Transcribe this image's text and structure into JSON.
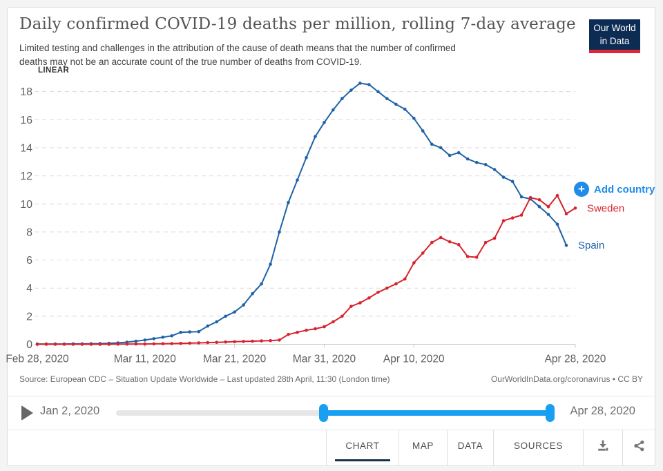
{
  "header": {
    "title": "Daily confirmed COVID-19 deaths per million, rolling 7-day average",
    "subtitle_line1": "Limited testing and challenges in the attribution of the cause of death means that the number of confirmed",
    "subtitle_line2": "deaths may not be an accurate count of the true number of deaths from COVID-19.",
    "logo_line1": "Our World",
    "logo_line2": "in Data"
  },
  "chart": {
    "scale_label": "LINEAR",
    "add_country_label": "Add country"
  },
  "chart_data": {
    "type": "line",
    "title": "Daily confirmed COVID-19 deaths per million, rolling 7-day average",
    "grid": true,
    "ylim": [
      0,
      18.6
    ],
    "y_ticks": [
      0,
      2,
      4,
      6,
      8,
      10,
      12,
      14,
      16,
      18
    ],
    "x_ticks": [
      {
        "label": "Feb 28, 2020",
        "day": 0
      },
      {
        "label": "Mar 11, 2020",
        "day": 12
      },
      {
        "label": "Mar 21, 2020",
        "day": 22
      },
      {
        "label": "Mar 31, 2020",
        "day": 32
      },
      {
        "label": "Apr 10, 2020",
        "day": 42
      },
      {
        "label": "Apr 28, 2020",
        "day": 60
      }
    ],
    "x_range": [
      "Feb 28, 2020",
      "Apr 28, 2020"
    ],
    "legend_position": "right-of-line-endpoints",
    "series": [
      {
        "name": "Spain",
        "color": "#1f62a8",
        "start_day": 0,
        "end_date": "Apr 27, 2020",
        "values": [
          0.02,
          0.02,
          0.02,
          0.02,
          0.03,
          0.03,
          0.04,
          0.05,
          0.07,
          0.1,
          0.15,
          0.22,
          0.3,
          0.4,
          0.5,
          0.6,
          0.85,
          0.88,
          0.9,
          1.3,
          1.6,
          2.0,
          2.3,
          2.8,
          3.6,
          4.3,
          5.7,
          8.0,
          10.1,
          11.7,
          13.3,
          14.8,
          15.8,
          16.7,
          17.5,
          18.1,
          18.6,
          18.5,
          18.0,
          17.5,
          17.1,
          16.75,
          16.1,
          15.2,
          14.25,
          14.0,
          13.45,
          13.65,
          13.2,
          12.95,
          12.8,
          12.45,
          11.9,
          11.6,
          10.5,
          10.35,
          9.8,
          9.25,
          8.55,
          7.05
        ]
      },
      {
        "name": "Sweden",
        "color": "#d7232d",
        "start_day": 0,
        "end_date": "Apr 28, 2020",
        "values": [
          0.0,
          0.0,
          0.0,
          0.0,
          0.0,
          0.0,
          0.0,
          0.0,
          0.0,
          0.01,
          0.01,
          0.02,
          0.02,
          0.03,
          0.04,
          0.05,
          0.06,
          0.08,
          0.1,
          0.12,
          0.14,
          0.16,
          0.18,
          0.2,
          0.22,
          0.24,
          0.26,
          0.3,
          0.7,
          0.85,
          1.0,
          1.1,
          1.25,
          1.6,
          2.0,
          2.7,
          2.95,
          3.3,
          3.7,
          4.0,
          4.3,
          4.65,
          5.8,
          6.5,
          7.25,
          7.6,
          7.3,
          7.1,
          6.25,
          6.2,
          7.25,
          7.55,
          8.8,
          9.0,
          9.2,
          10.45,
          10.3,
          9.8,
          10.6,
          9.3,
          9.7
        ]
      }
    ]
  },
  "footer": {
    "source": "Source: European CDC – Situation Update Worldwide – Last updated 28th April, 11:30 (London time)",
    "attribution": "OurWorldInData.org/coronavirus • CC BY"
  },
  "timeline": {
    "start_label": "Jan 2, 2020",
    "end_label": "Apr 28, 2020",
    "selected_range_percent": [
      47.5,
      100
    ]
  },
  "tabs": [
    {
      "label": "CHART",
      "active": true
    },
    {
      "label": "MAP",
      "active": false
    },
    {
      "label": "DATA",
      "active": false
    },
    {
      "label": "SOURCES",
      "active": false
    }
  ],
  "colors": {
    "spain_line": "#1f62a8",
    "sweden_line": "#d7232d",
    "slider_accent": "#189ff2",
    "add_country_blue": "#1e8ce8",
    "logo_navy": "#0d2c54",
    "logo_red": "#dc2a35",
    "active_tab_underline": "#16324d"
  }
}
